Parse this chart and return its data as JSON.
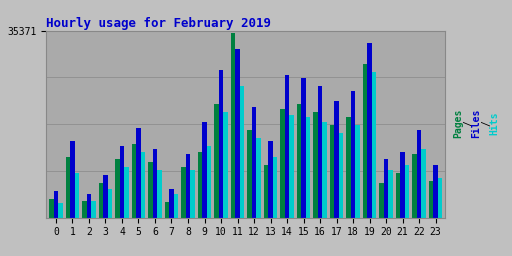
{
  "title": "Hourly usage for February 2019",
  "ymax": 35371,
  "hours": [
    0,
    1,
    2,
    3,
    4,
    5,
    6,
    7,
    8,
    9,
    10,
    11,
    12,
    13,
    14,
    15,
    16,
    17,
    18,
    19,
    20,
    21,
    22,
    23
  ],
  "pages": [
    3500,
    11500,
    3200,
    6500,
    11000,
    14000,
    10500,
    3000,
    9500,
    12500,
    21500,
    35000,
    16500,
    10000,
    20500,
    21500,
    20000,
    17500,
    19000,
    29000,
    6500,
    8500,
    12000,
    7000
  ],
  "files": [
    5000,
    14500,
    4500,
    8000,
    13500,
    17000,
    13000,
    5500,
    12000,
    18000,
    28000,
    32000,
    21000,
    14500,
    27000,
    26500,
    25000,
    22000,
    24000,
    33000,
    11000,
    12500,
    16500,
    10000
  ],
  "hits": [
    2800,
    8500,
    3200,
    5500,
    9500,
    12500,
    9000,
    4500,
    9000,
    13500,
    20000,
    25000,
    15000,
    11500,
    19500,
    19000,
    18000,
    16000,
    17500,
    27500,
    9000,
    10000,
    13000,
    7500
  ],
  "color_pages": "#008040",
  "color_files": "#0000cc",
  "color_hits": "#00cccc",
  "fig_bg": "#c0c0c0",
  "plot_bg": "#aaaaaa",
  "title_color": "#0000cc",
  "grid_color": "#999999"
}
